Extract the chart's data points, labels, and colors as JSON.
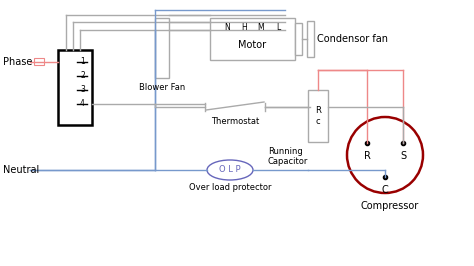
{
  "background_color": "#ffffff",
  "phase_label": "Phase",
  "neutral_label": "Neutral",
  "blower_fan_label": "Blower Fan",
  "motor_label": "Motor",
  "motor_terminals": [
    "N",
    "H",
    "M",
    "L"
  ],
  "condenser_fan_label": "Condensor fan",
  "thermostat_label": "Thermostat",
  "olp_label": "O L P",
  "overload_label": "Over load protector",
  "running_cap_label": "Running\nCapacitor",
  "rc_label": "R\nc",
  "compressor_label": "Compressor",
  "compressor_terminals": [
    "R",
    "S",
    "C"
  ],
  "wire_color_gray": "#aaaaaa",
  "wire_color_blue": "#7799cc",
  "wire_color_red": "#ee8888",
  "olp_text_color": "#6666bb",
  "compressor_circle_color": "#990000",
  "figsize": [
    4.74,
    2.66
  ],
  "dpi": 100
}
